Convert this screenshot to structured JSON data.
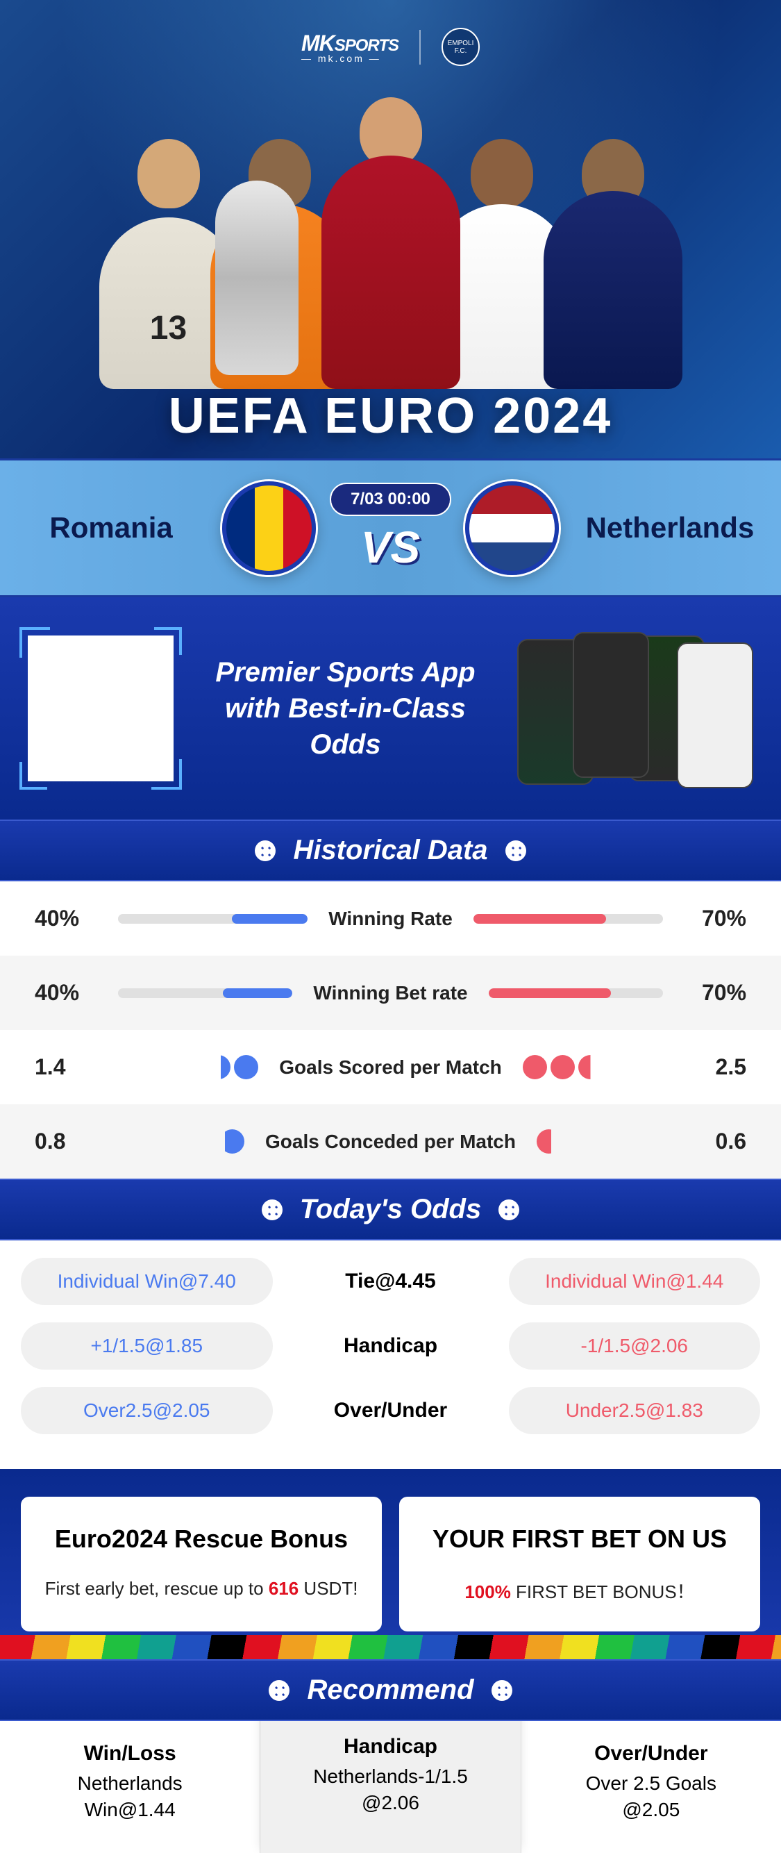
{
  "logo": {
    "brand": "MK",
    "brand_suffix": "SPORTS",
    "tagline": "— mk.com —",
    "club": "EMPOLI F.C."
  },
  "hero": {
    "title": "UEFA EURO 2024",
    "jersey_number": "13"
  },
  "match": {
    "team_a": "Romania",
    "team_b": "Netherlands",
    "datetime": "7/03 00:00",
    "vs": "VS",
    "flag_a_colors": [
      "#002b7f",
      "#fcd116",
      "#ce1126"
    ],
    "flag_b_colors": [
      "#ae1c28",
      "#ffffff",
      "#21468b"
    ]
  },
  "promo": {
    "line1": "Premier Sports App",
    "line2": "with Best-in-Class Odds"
  },
  "sections": {
    "historical": "Historical Data",
    "odds": "Today's Odds",
    "recommend": "Recommend"
  },
  "historical": {
    "rows": [
      {
        "label": "Winning Rate",
        "left_val": "40%",
        "right_val": "70%",
        "left_pct": 40,
        "right_pct": 70,
        "type": "bar"
      },
      {
        "label": "Winning Bet rate",
        "left_val": "40%",
        "right_val": "70%",
        "left_pct": 40,
        "right_pct": 70,
        "type": "bar"
      },
      {
        "label": "Goals Scored per Match",
        "left_val": "1.4",
        "right_val": "2.5",
        "left_balls": 1.4,
        "right_balls": 2.5,
        "type": "balls"
      },
      {
        "label": "Goals Conceded per Match",
        "left_val": "0.8",
        "right_val": "0.6",
        "left_balls": 0.8,
        "right_balls": 0.6,
        "type": "balls"
      }
    ],
    "left_color": "#4a7aef",
    "right_color": "#ef5a6a",
    "bar_bg": "#e0e0e0"
  },
  "odds": {
    "rows": [
      {
        "left": "Individual Win@7.40",
        "center": "Tie@4.45",
        "right": "Individual Win@1.44"
      },
      {
        "left": "+1/1.5@1.85",
        "center": "Handicap",
        "right": "-1/1.5@2.06"
      },
      {
        "left": "Over2.5@2.05",
        "center": "Over/Under",
        "right": "Under2.5@1.83"
      }
    ],
    "pill_bg": "#f0f0f0",
    "left_color": "#4a7aef",
    "right_color": "#ef5a6a"
  },
  "bonus": {
    "card1": {
      "title": "Euro2024 Rescue Bonus",
      "text_pre": "First early bet, rescue up to ",
      "highlight": "616",
      "text_post": " USDT!"
    },
    "card2": {
      "title": "YOUR FIRST BET ON US",
      "highlight": "100%",
      "text_post": " FIRST BET BONUS！"
    }
  },
  "recommend": {
    "cols": [
      {
        "title": "Win/Loss",
        "line1": "Netherlands",
        "line2": "Win@1.44"
      },
      {
        "title": "Handicap",
        "line1": "Netherlands-1/1.5",
        "line2": "@2.06",
        "featured": true
      },
      {
        "title": "Over/Under",
        "line1": "Over 2.5 Goals",
        "line2": "@2.05"
      }
    ]
  },
  "colors": {
    "primary_blue": "#1a3aae",
    "dark_blue": "#0a2a8e",
    "sky_blue": "#6bb0e8",
    "accent_blue": "#4a7aef",
    "accent_red": "#ef5a6a",
    "highlight_red": "#e01020"
  }
}
